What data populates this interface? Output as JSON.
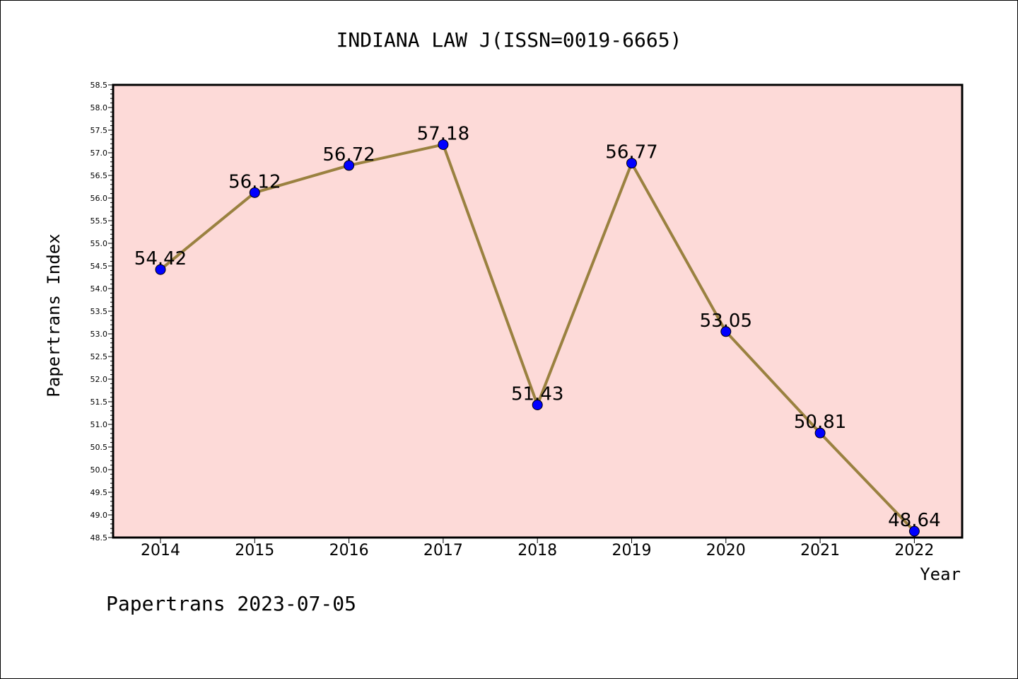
{
  "chart_data": {
    "type": "line",
    "title": "INDIANA LAW J(ISSN=0019-6665)",
    "xlabel": "Year",
    "ylabel": "Papertrans Index",
    "categories": [
      "2014",
      "2015",
      "2016",
      "2017",
      "2018",
      "2019",
      "2020",
      "2021",
      "2022"
    ],
    "series": [
      {
        "values": [
          54.42,
          56.12,
          56.72,
          57.18,
          51.43,
          56.77,
          53.05,
          50.81,
          48.64
        ],
        "labels": [
          "54.42",
          "56.12",
          "56.72",
          "57.18",
          "51.43",
          "56.77",
          "53.05",
          "50.81",
          "48.64"
        ]
      }
    ],
    "ylim": [
      48.5,
      58.5
    ],
    "yticks": [
      "48.5",
      "49.0",
      "49.5",
      "50.0",
      "50.5",
      "51.0",
      "51.5",
      "52.0",
      "52.5",
      "53.0",
      "53.5",
      "54.0",
      "54.5",
      "55.0",
      "55.5",
      "56.0",
      "56.5",
      "57.0",
      "57.5",
      "58.0",
      "58.5"
    ],
    "grid": false,
    "colors": {
      "plot_background": "#fddad8",
      "line": "#9a8140",
      "marker": "#0000ff"
    }
  },
  "footer": "Papertrans 2023-07-05"
}
